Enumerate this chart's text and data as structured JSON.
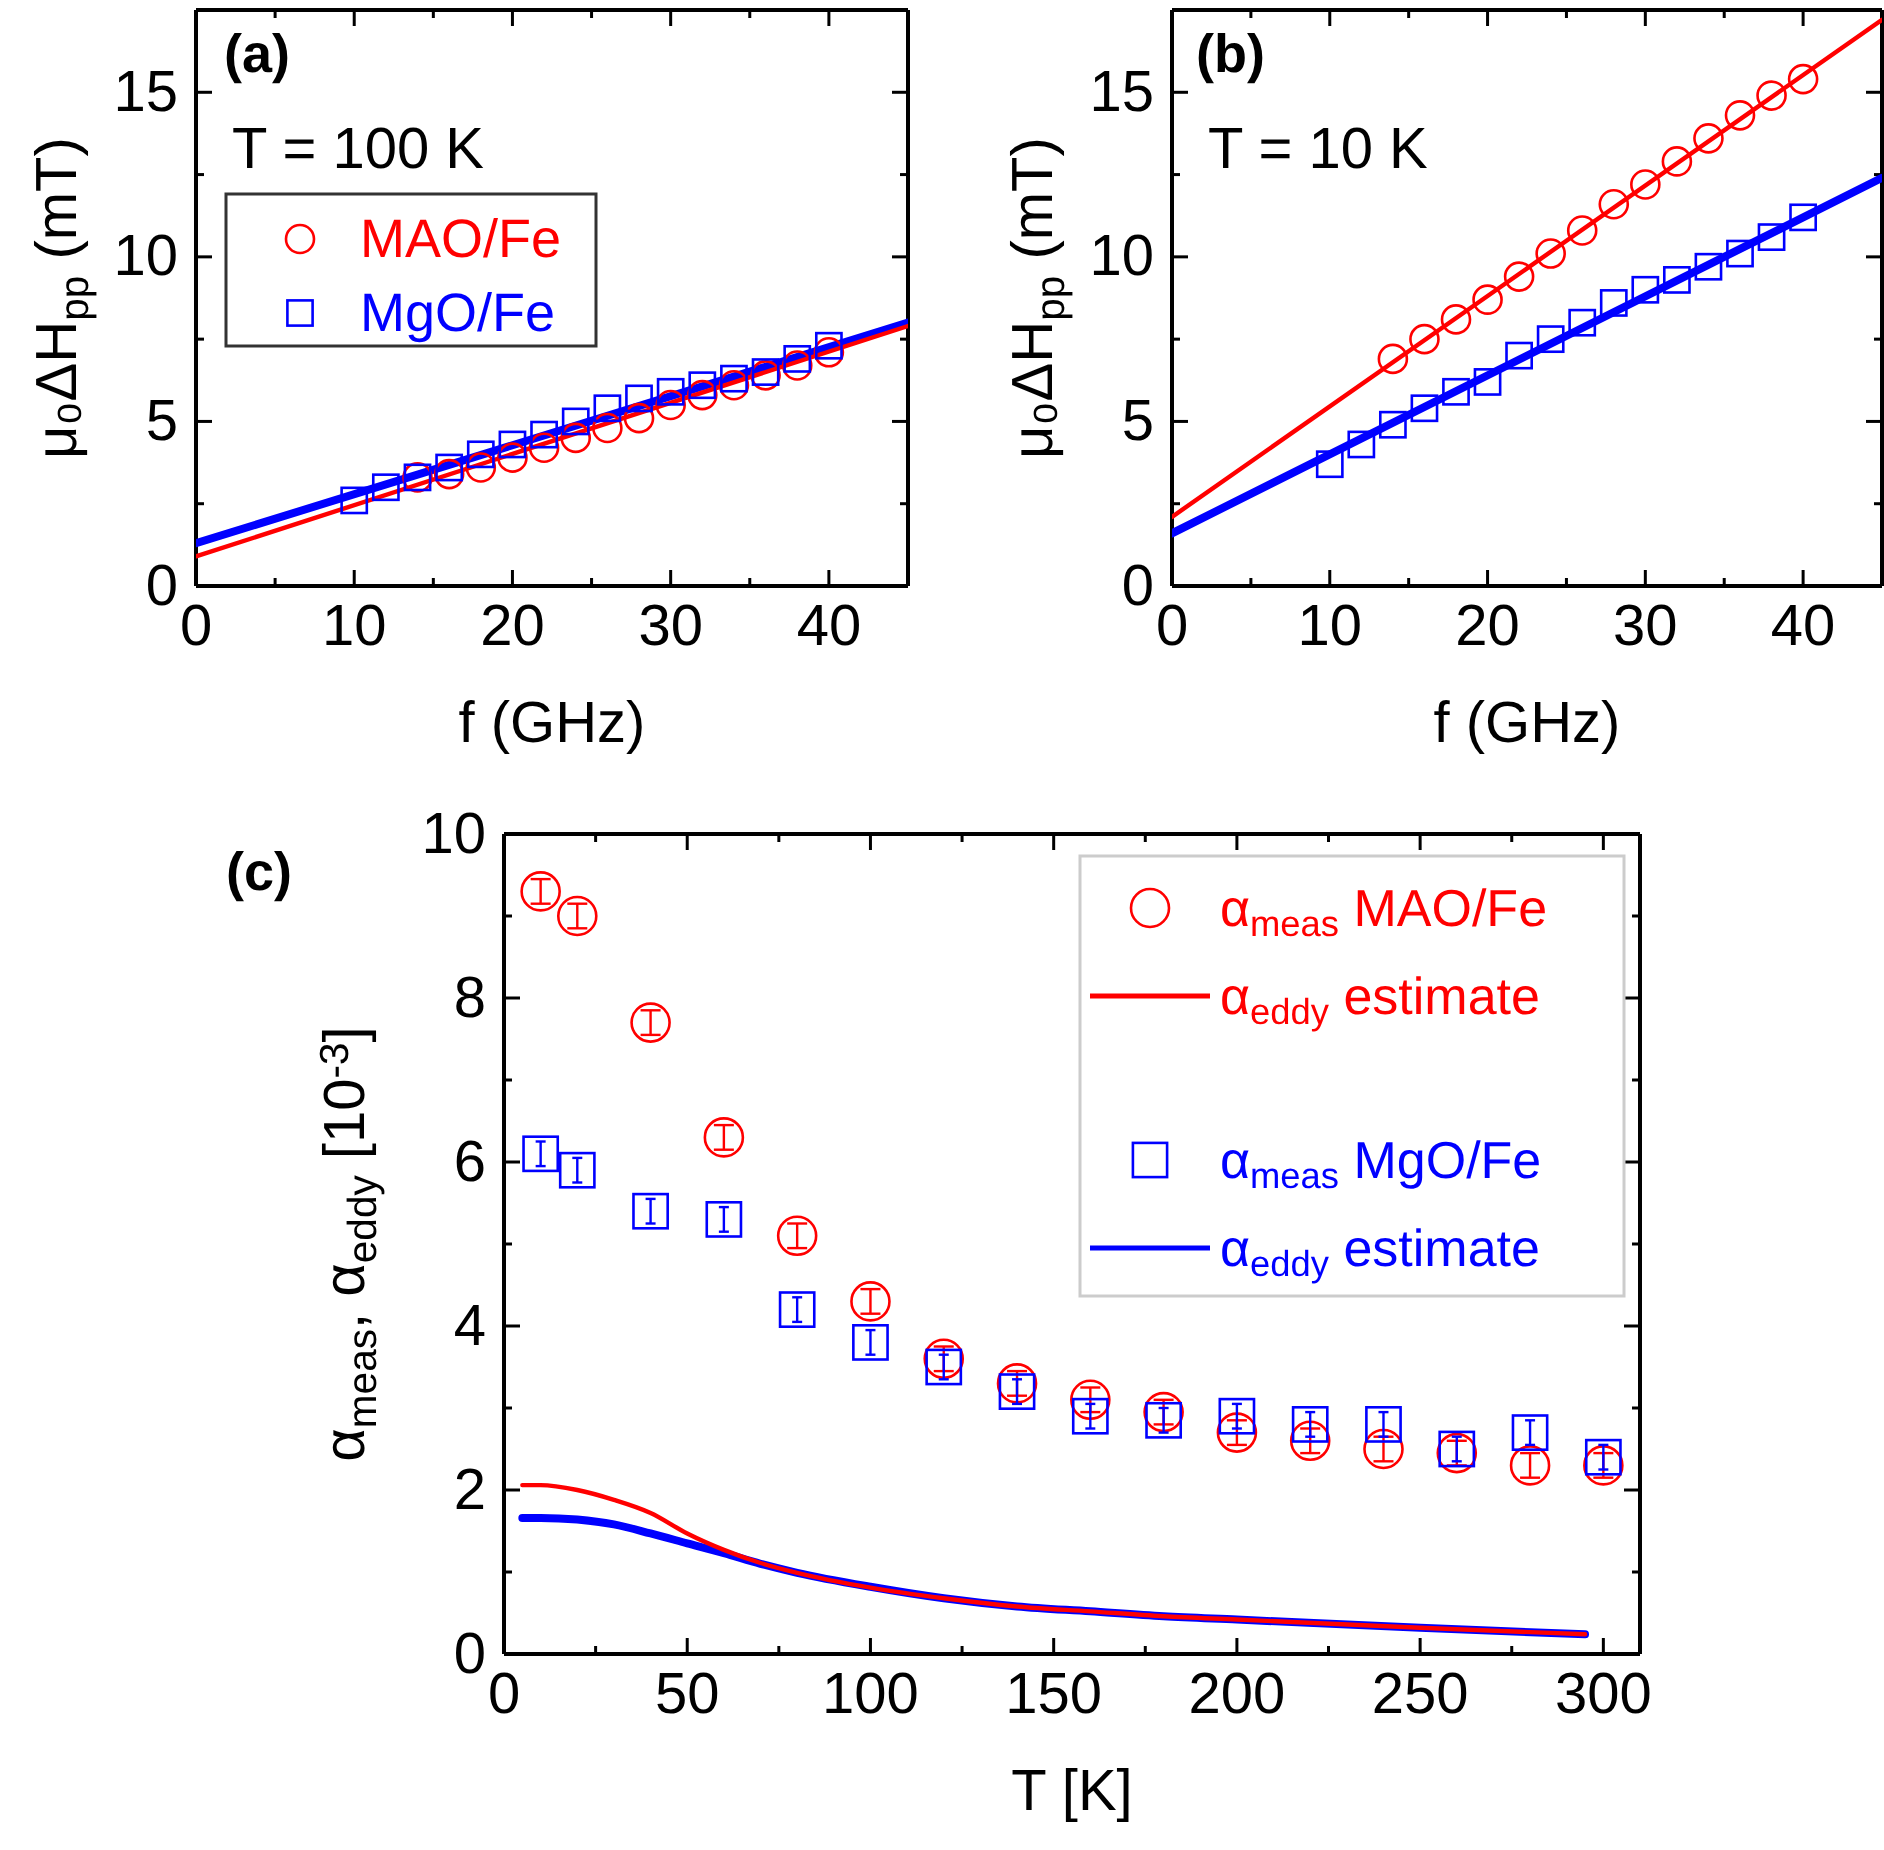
{
  "chart_data": [
    {
      "type": "scatter",
      "xlabel": "f (GHz)",
      "ylabel": "μ₀ΔH$_{pp}$ (mT)",
      "annotations": [
        "(a)",
        "T = 100 K"
      ],
      "xlim": [
        0,
        45
      ],
      "xticks": [
        0,
        {
          "value": 5,
          "label": null
        },
        10,
        {
          "value": 15,
          "label": null
        },
        20,
        {
          "value": 25,
          "label": null
        },
        30,
        {
          "value": 35,
          "label": null
        },
        40
      ],
      "ylim": [
        0,
        17.5
      ],
      "yticks": [
        0,
        {
          "value": 2.5,
          "label": null
        },
        5,
        {
          "value": 7.5,
          "label": null
        },
        10,
        {
          "value": 12.5,
          "label": null
        },
        15
      ],
      "grid": false,
      "legend": "top left",
      "series": [
        {
          "name": "MAO/Fe",
          "type": "scatter",
          "marker": "circle",
          "color": "#ff0000",
          "x": [
            14,
            16,
            18,
            20,
            22,
            24,
            26,
            28,
            30,
            32,
            34,
            36,
            38,
            40
          ],
          "values": [
            3.3,
            3.4,
            3.6,
            3.9,
            4.2,
            4.5,
            4.8,
            5.1,
            5.5,
            5.8,
            6.1,
            6.4,
            6.7,
            7.1
          ]
        },
        {
          "name": "MgO/Fe",
          "type": "scatter",
          "marker": "square",
          "color": "#0000ff",
          "x": [
            10,
            12,
            14,
            16,
            18,
            20,
            22,
            24,
            26,
            28,
            30,
            32,
            34,
            36,
            38,
            40
          ],
          "values": [
            2.6,
            3.0,
            3.3,
            3.6,
            4.0,
            4.3,
            4.6,
            5.0,
            5.4,
            5.7,
            5.9,
            6.1,
            6.3,
            6.5,
            6.9,
            7.3
          ]
        },
        {
          "type": "line",
          "color": "#ff0000",
          "x": [
            0,
            45
          ],
          "values": [
            0.9,
            7.9
          ]
        },
        {
          "type": "line",
          "color": "#0000ff",
          "x": [
            0,
            45
          ],
          "values": [
            1.3,
            8.0
          ]
        }
      ]
    },
    {
      "type": "scatter",
      "xlabel": "f (GHz)",
      "ylabel": "μ₀ΔH$_{pp}$ (mT)",
      "annotations": [
        "(b)",
        "T = 10 K"
      ],
      "xlim": [
        0,
        45
      ],
      "xticks": [
        0,
        {
          "value": 5,
          "label": null
        },
        10,
        {
          "value": 15,
          "label": null
        },
        20,
        {
          "value": 25,
          "label": null
        },
        30,
        {
          "value": 35,
          "label": null
        },
        40
      ],
      "ylim": [
        0,
        17.5
      ],
      "yticks": [
        0,
        {
          "value": 2.5,
          "label": null
        },
        5,
        {
          "value": 7.5,
          "label": null
        },
        10,
        {
          "value": 12.5,
          "label": null
        },
        15
      ],
      "grid": false,
      "series": [
        {
          "type": "scatter",
          "marker": "circle",
          "color": "#ff0000",
          "x": [
            14,
            16,
            18,
            20,
            22,
            24,
            26,
            28,
            30,
            32,
            34,
            36,
            38,
            40
          ],
          "values": [
            6.9,
            7.5,
            8.1,
            8.7,
            9.4,
            10.1,
            10.8,
            11.6,
            12.2,
            12.9,
            13.6,
            14.3,
            14.9,
            15.4
          ]
        },
        {
          "type": "scatter",
          "marker": "square",
          "color": "#0000ff",
          "x": [
            10,
            12,
            14,
            16,
            18,
            20,
            22,
            24,
            26,
            28,
            30,
            32,
            34,
            36,
            38,
            40
          ],
          "values": [
            3.7,
            4.3,
            4.9,
            5.4,
            5.9,
            6.2,
            7.0,
            7.5,
            8.0,
            8.6,
            9.0,
            9.3,
            9.7,
            10.1,
            10.6,
            11.2
          ]
        },
        {
          "type": "line",
          "color": "#ff0000",
          "x": [
            0,
            45
          ],
          "values": [
            2.1,
            17.2
          ]
        },
        {
          "type": "line",
          "color": "#0000ff",
          "x": [
            0,
            45
          ],
          "values": [
            1.6,
            12.4
          ]
        }
      ]
    },
    {
      "type": "scatter",
      "xlabel": "T [K]",
      "ylabel": "α$_{meas}$, α$_{eddy}$ [10$^{-3}$]",
      "annotations": [
        "(c)"
      ],
      "xlim": [
        0,
        310
      ],
      "xticks": [
        0,
        {
          "value": 25,
          "label": null
        },
        50,
        {
          "value": 75,
          "label": null
        },
        100,
        {
          "value": 125,
          "label": null
        },
        150,
        {
          "value": 175,
          "label": null
        },
        200,
        {
          "value": 225,
          "label": null
        },
        250,
        {
          "value": 275,
          "label": null
        },
        300
      ],
      "ylim": [
        0,
        10
      ],
      "yticks": [
        0,
        {
          "value": 1,
          "label": null
        },
        2,
        {
          "value": 3,
          "label": null
        },
        4,
        {
          "value": 5,
          "label": null
        },
        6,
        {
          "value": 7,
          "label": null
        },
        8,
        {
          "value": 9,
          "label": null
        },
        10
      ],
      "grid": false,
      "legend": "top right",
      "series": [
        {
          "name": "α$_{meas}$ MAO/Fe",
          "type": "scatter",
          "marker": "circle",
          "color": "#ff0000",
          "x": [
            10,
            20,
            40,
            60,
            80,
            100,
            120,
            140,
            160,
            180,
            200,
            220,
            240,
            260,
            280,
            300
          ],
          "values": [
            9.3,
            9.0,
            7.7,
            6.3,
            5.1,
            4.3,
            3.6,
            3.3,
            3.1,
            2.95,
            2.7,
            2.6,
            2.5,
            2.45,
            2.3,
            2.3
          ],
          "errors": [
            0.15,
            0.15,
            0.15,
            0.15,
            0.15,
            0.15,
            0.15,
            0.15,
            0.15,
            0.15,
            0.15,
            0.15,
            0.15,
            0.15,
            0.15,
            0.15
          ]
        },
        {
          "name": "α$_{eddy}$ estimate",
          "type": "line",
          "color": "#ff0000",
          "x": [
            5,
            10,
            20,
            30,
            40,
            50,
            60,
            70,
            80,
            100,
            120,
            140,
            160,
            180,
            200,
            250,
            295
          ],
          "values": [
            2.06,
            2.06,
            2.0,
            1.88,
            1.72,
            1.47,
            1.27,
            1.11,
            0.99,
            0.81,
            0.68,
            0.58,
            0.52,
            0.46,
            0.42,
            0.32,
            0.24
          ]
        },
        {
          "name": "α$_{meas}$ MgO/Fe",
          "type": "scatter",
          "marker": "square",
          "color": "#0000ff",
          "x": [
            10,
            20,
            40,
            60,
            80,
            100,
            120,
            140,
            160,
            180,
            200,
            220,
            240,
            260,
            280,
            300
          ],
          "values": [
            6.1,
            5.9,
            5.4,
            5.3,
            4.2,
            3.8,
            3.5,
            3.2,
            2.9,
            2.85,
            2.9,
            2.8,
            2.8,
            2.5,
            2.7,
            2.4
          ],
          "errors": [
            0.15,
            0.15,
            0.15,
            0.15,
            0.15,
            0.15,
            0.15,
            0.15,
            0.15,
            0.15,
            0.15,
            0.15,
            0.15,
            0.15,
            0.15,
            0.15
          ]
        },
        {
          "name": "α$_{eddy}$ estimate",
          "type": "line",
          "color": "#0000ff",
          "x": [
            5,
            10,
            20,
            30,
            40,
            50,
            60,
            70,
            80,
            100,
            120,
            140,
            160,
            180,
            200,
            250,
            295
          ],
          "values": [
            1.66,
            1.66,
            1.64,
            1.58,
            1.47,
            1.35,
            1.23,
            1.1,
            0.99,
            0.82,
            0.68,
            0.58,
            0.52,
            0.46,
            0.42,
            0.32,
            0.24
          ]
        }
      ]
    }
  ]
}
